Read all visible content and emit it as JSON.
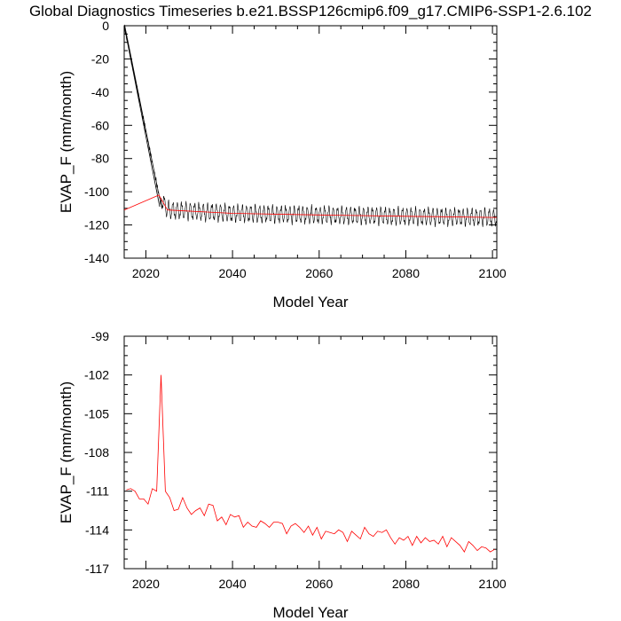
{
  "figure": {
    "title": "Global Diagnostics Timeseries b.e21.BSSP126cmip6.f09_g17.CMIP6-SSP1-2.6.102"
  },
  "chart_data": [
    {
      "type": "line",
      "title": "",
      "xlabel": "Model Year",
      "ylabel": "EVAP_F (mm/month)",
      "xlim": [
        2015,
        2101
      ],
      "ylim": [
        -140,
        0
      ],
      "xticks": [
        2020,
        2040,
        2060,
        2080,
        2100
      ],
      "yticks": [
        0,
        -20,
        -40,
        -60,
        -80,
        -100,
        -120,
        -140
      ],
      "grid": false,
      "legend": "none",
      "series": [
        {
          "description_key": "monthly",
          "color": "#000000",
          "seasonal_amplitude": 4.5,
          "x": [
            2015,
            2023.5
          ],
          "y": [
            0,
            -108
          ]
        },
        {
          "description_key": "annual",
          "color": "#ff0000",
          "x": [
            2015,
            2023,
            2025,
            2040,
            2060,
            2080,
            2101
          ],
          "y": [
            -111,
            -102,
            -111,
            -113,
            -114,
            -114.8,
            -115.5
          ]
        }
      ]
    },
    {
      "type": "line",
      "title": "",
      "xlabel": "Model Year",
      "ylabel": "EVAP_F (mm/month)",
      "xlim": [
        2015,
        2101
      ],
      "ylim": [
        -117,
        -99
      ],
      "xticks": [
        2020,
        2040,
        2060,
        2080,
        2100
      ],
      "yticks": [
        -99,
        -102,
        -105,
        -108,
        -111,
        -114,
        -117
      ],
      "grid": false,
      "legend": "none",
      "series": [
        {
          "color": "#ff0000",
          "x": [
            2015.5,
            2016.5,
            2017.5,
            2018.5,
            2019.5,
            2020.5,
            2021.5,
            2022.5,
            2023.5,
            2024.5,
            2025.5,
            2026.5,
            2027.5,
            2028.5,
            2029.5,
            2030.5,
            2031.5,
            2032.5,
            2033.5,
            2034.5,
            2035.5,
            2036.5,
            2037.5,
            2038.5,
            2039.5,
            2040.5,
            2041.5,
            2042.5,
            2043.5,
            2044.5,
            2045.5,
            2046.5,
            2047.5,
            2048.5,
            2049.5,
            2050.5,
            2051.5,
            2052.5,
            2053.5,
            2054.5,
            2055.5,
            2056.5,
            2057.5,
            2058.5,
            2059.5,
            2060.5,
            2061.5,
            2062.5,
            2063.5,
            2064.5,
            2065.5,
            2066.5,
            2067.5,
            2068.5,
            2069.5,
            2070.5,
            2071.5,
            2072.5,
            2073.5,
            2074.5,
            2075.5,
            2076.5,
            2077.5,
            2078.5,
            2079.5,
            2080.5,
            2081.5,
            2082.5,
            2083.5,
            2084.5,
            2085.5,
            2086.5,
            2087.5,
            2088.5,
            2089.5,
            2090.5,
            2091.5,
            2092.5,
            2093.5,
            2094.5,
            2095.5,
            2096.5,
            2097.5,
            2098.5,
            2099.5,
            2100.5
          ],
          "y": [
            -110.9,
            -110.8,
            -111.0,
            -111.6,
            -111.6,
            -112.0,
            -110.8,
            -111.0,
            -102.0,
            -111.0,
            -111.5,
            -112.5,
            -112.4,
            -111.5,
            -112.3,
            -112.8,
            -112.5,
            -112.3,
            -112.9,
            -112.0,
            -112.1,
            -113.3,
            -113.0,
            -113.6,
            -112.8,
            -113.0,
            -112.9,
            -113.8,
            -113.4,
            -113.7,
            -113.8,
            -113.3,
            -113.5,
            -113.8,
            -113.4,
            -113.4,
            -113.5,
            -114.3,
            -113.7,
            -113.5,
            -113.8,
            -114.2,
            -113.7,
            -114.4,
            -113.8,
            -114.7,
            -114.1,
            -114.2,
            -114.3,
            -114.0,
            -114.2,
            -114.9,
            -114.1,
            -114.4,
            -114.7,
            -113.8,
            -114.3,
            -114.5,
            -114.1,
            -114.2,
            -114.0,
            -114.6,
            -115.1,
            -114.6,
            -114.8,
            -114.5,
            -115.2,
            -114.5,
            -115.0,
            -114.6,
            -114.9,
            -114.8,
            -115.1,
            -114.5,
            -115.3,
            -114.6,
            -114.9,
            -115.2,
            -115.7,
            -114.9,
            -115.2,
            -115.6,
            -115.3,
            -115.4,
            -115.7,
            -115.5
          ]
        }
      ]
    }
  ]
}
